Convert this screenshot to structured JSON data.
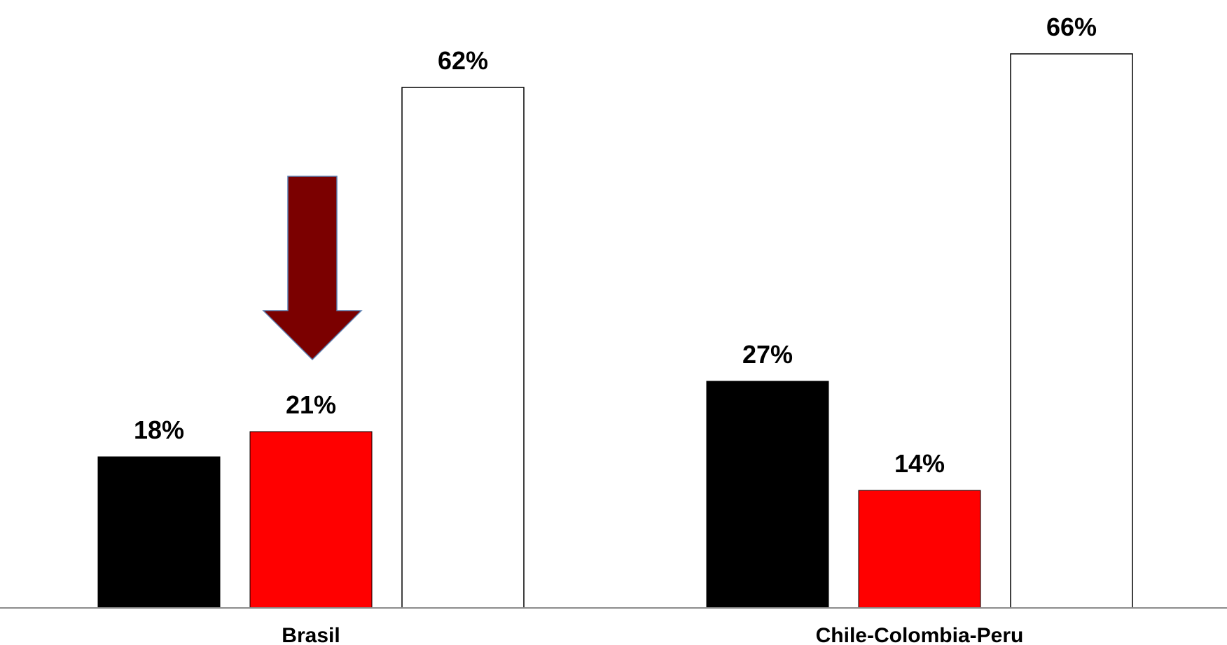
{
  "chart_data": {
    "type": "bar",
    "title": "",
    "xlabel": "",
    "ylabel": "",
    "categories": [
      "Brasil",
      "Chile-Colombia-Peru"
    ],
    "series": [
      {
        "values": [
          18,
          27
        ],
        "color": "#000000",
        "value_labels": [
          "18%",
          "27%"
        ]
      },
      {
        "values": [
          21,
          14
        ],
        "color": "#ff0000",
        "value_labels": [
          "21%",
          "14%"
        ]
      },
      {
        "values": [
          62,
          66
        ],
        "color": "#ffffff",
        "value_labels": [
          "62%",
          "66%"
        ]
      }
    ],
    "ylim": [
      0,
      70
    ],
    "grid": false,
    "legend": "none",
    "annotation": {
      "type": "arrow-down",
      "points_to": {
        "category": "Brasil",
        "series_index": 1
      },
      "color": "#7b0000"
    }
  }
}
